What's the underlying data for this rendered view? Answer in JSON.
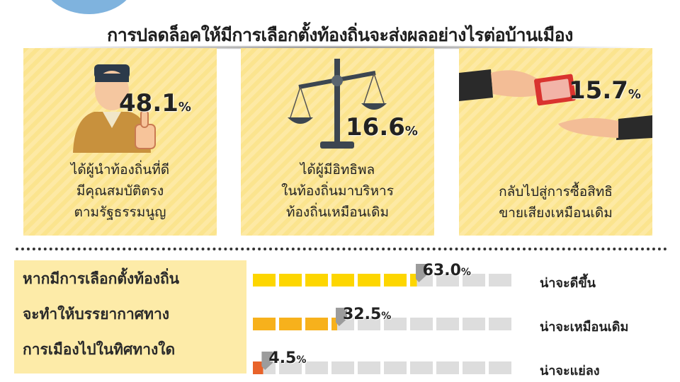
{
  "title": "การปลดล็อคให้มีการเลือกตั้งท้องถิ่นจะส่งผลอย่างไรต่อบ้านเมือง",
  "cards": [
    {
      "percent": "48.1",
      "unit": "%",
      "icon": "official-thumbs-up-icon",
      "lines": [
        "ได้ผู้นำท้องถิ่นที่ดี",
        "มีคุณสมบัติตรง",
        "ตามรัฐธรรมนูญ"
      ]
    },
    {
      "percent": "16.6",
      "unit": "%",
      "icon": "scales-of-justice-icon",
      "lines": [
        "ได้ผู้มีอิทธิพล",
        "ในท้องถิ่นมาบริหาร",
        "ท้องถิ่นเหมือนเดิม"
      ]
    },
    {
      "percent": "15.7",
      "unit": "%",
      "icon": "money-handover-icon",
      "lines": [
        "กลับไปสู่การซื้อสิทธิ",
        "ขายเสียงเหมือนเดิม"
      ]
    }
  ],
  "question": {
    "lines": [
      "หากมีการเลือกตั้งท้องถิ่น",
      "จะทำให้บรรยากาศทาง",
      "การเมืองไปในทิศทางใด"
    ]
  },
  "chart_data": {
    "type": "bar",
    "categories": [
      "น่าจะดีขึ้น",
      "น่าจะเหมือนเดิม",
      "น่าจะแย่ลง"
    ],
    "values": [
      63.0,
      32.5,
      4.5
    ],
    "labels": [
      "63.0",
      "32.5",
      "4.5"
    ],
    "unit": "%",
    "ylim": [
      0,
      100
    ],
    "segments": 10,
    "colors": [
      "#fdd600",
      "#f7b11c",
      "#e8632a"
    ],
    "empty_color": "#dddddd"
  }
}
